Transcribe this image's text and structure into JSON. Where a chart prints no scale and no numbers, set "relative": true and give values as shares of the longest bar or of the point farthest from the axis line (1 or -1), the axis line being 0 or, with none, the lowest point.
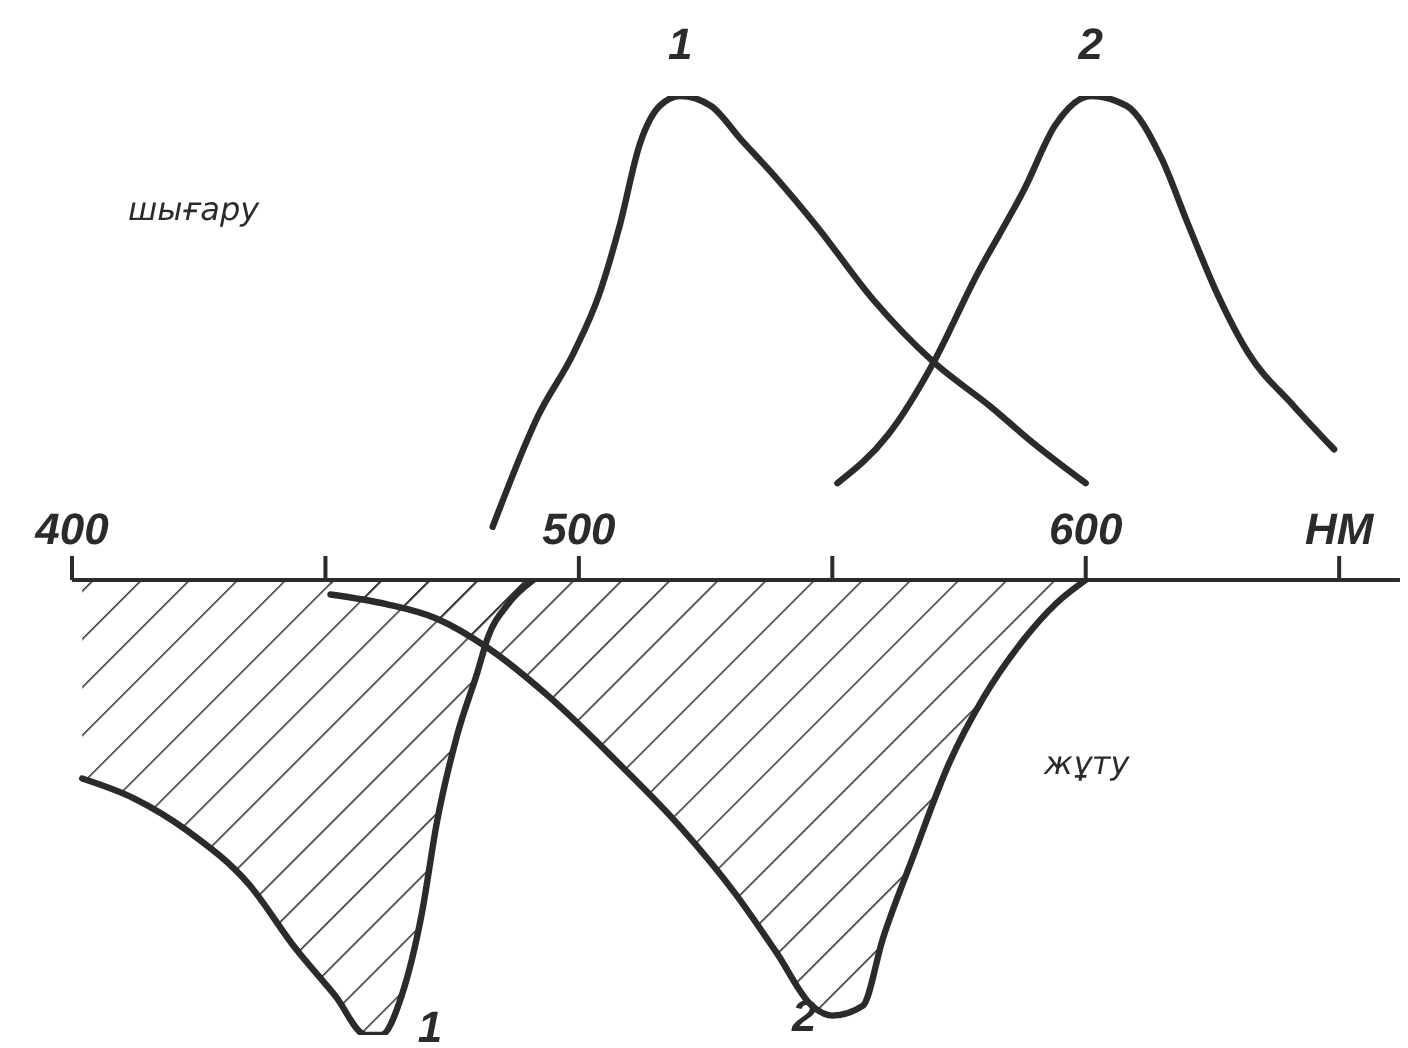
{
  "chart_data": {
    "type": "line",
    "relative": true,
    "annotations": [
      "шығару",
      "жұту"
    ],
    "xlim": [
      400,
      662
    ],
    "xticks": [
      400,
      {
        "value": 450,
        "label": null
      },
      500,
      {
        "value": 550,
        "label": null
      },
      600,
      {
        "value": 650,
        "label": "НМ"
      }
    ],
    "series": [
      {
        "name": "1",
        "color": "#2b2b2b",
        "x": [
          483,
          492,
          499,
          504,
          508,
          512,
          516,
          520,
          526,
          532,
          539,
          547,
          558,
          570,
          581,
          590,
          600
        ],
        "values": [
          0.11,
          0.34,
          0.47,
          0.59,
          0.73,
          0.9,
          0.98,
          1,
          0.98,
          0.91,
          0.83,
          0.73,
          0.58,
          0.45,
          0.36,
          0.28,
          0.2
        ]
      },
      {
        "name": "2",
        "color": "#2b2b2b",
        "x": [
          551,
          561,
          570,
          578,
          588,
          594,
          601,
          608,
          615,
          620,
          626,
          632,
          641,
          649
        ],
        "values": [
          0.2,
          0.3,
          0.45,
          0.62,
          0.81,
          0.94,
          1,
          0.98,
          0.87,
          0.74,
          0.59,
          0.47,
          0.36,
          0.27
        ]
      },
      {
        "name": "1",
        "type": "area",
        "color": "#2b2b2b",
        "x": [
          402,
          412,
          423,
          435,
          444,
          452,
          458,
          461,
          465,
          469,
          472,
          476,
          480,
          482,
          486,
          491
        ],
        "values": [
          -0.41,
          -0.45,
          -0.52,
          -0.63,
          -0.76,
          -0.86,
          -0.94,
          -0.94,
          -0.86,
          -0.69,
          -0.5,
          -0.32,
          -0.19,
          -0.12,
          -0.05,
          0
        ]
      },
      {
        "name": "2",
        "type": "area",
        "color": "#2b2b2b",
        "x": [
          451,
          462,
          472,
          482,
          494,
          507,
          520,
          531,
          539,
          546,
          550,
          556,
          560,
          566,
          573,
          580,
          588,
          594,
          600
        ],
        "values": [
          -0.03,
          -0.05,
          -0.08,
          -0.14,
          -0.24,
          -0.37,
          -0.51,
          -0.65,
          -0.77,
          -0.88,
          -0.9,
          -0.88,
          -0.74,
          -0.57,
          -0.38,
          -0.24,
          -0.12,
          -0.05,
          0
        ]
      }
    ]
  }
}
